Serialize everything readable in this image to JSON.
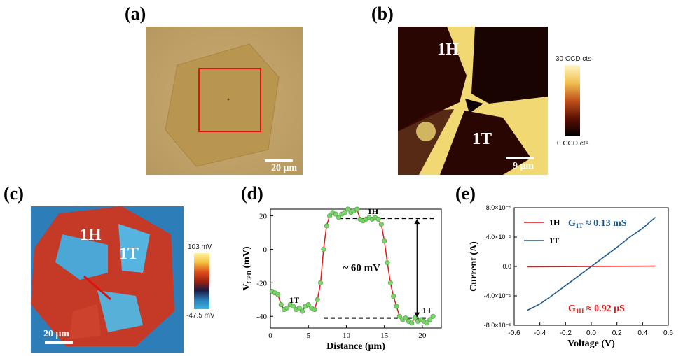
{
  "panels": {
    "a": {
      "label": "(a)",
      "scale_bar": "20 μm"
    },
    "b": {
      "label": "(b)",
      "region_1h": "1H",
      "region_1t": "1T",
      "scale_bar": "9 μm",
      "colorbar_max": "30 CCD cts",
      "colorbar_min": "0 CCD cts"
    },
    "c": {
      "label": "(c)",
      "region_1h": "1H",
      "region_1t": "1T",
      "scale_bar": "20 μm",
      "colorbar_max": "103 mV",
      "colorbar_min": "-47.5 mV"
    },
    "d": {
      "label": "(d)"
    },
    "e": {
      "label": "(e)"
    }
  },
  "colors": {
    "optical_bg": "#c3a46b",
    "flake": "#b99650",
    "marker_red": "#e01010",
    "line_red": "#e01818",
    "line_blue": "#1f5a91",
    "marker_green": "#7bd36a",
    "annot_red": "#e01818",
    "annot_blue": "#1f5a91"
  },
  "chart_data": [
    {
      "type": "line",
      "panel": "d",
      "xlabel": "Distance (μm)",
      "ylabel": "V_CPD (mV)",
      "xlim": [
        0,
        22.5
      ],
      "ylim": [
        -47,
        24
      ],
      "xticks": [
        0,
        5,
        10,
        15,
        20
      ],
      "yticks": [
        -40,
        -20,
        0,
        20
      ],
      "series": [
        {
          "x": [
            0.2,
            0.6,
            1.0,
            1.4,
            1.8,
            2.2,
            2.6,
            3.0,
            3.4,
            3.8,
            4.2,
            4.6,
            5.0,
            5.4,
            5.8,
            6.2,
            6.6,
            7.0,
            7.4,
            7.8,
            8.2,
            8.6,
            9.0,
            9.4,
            9.8,
            10.2,
            10.6,
            11.0,
            11.4,
            11.8,
            12.2,
            12.6,
            13.0,
            13.4,
            13.8,
            14.2,
            14.6,
            15.0,
            15.4,
            15.8,
            16.2,
            16.6,
            17.0,
            17.4,
            17.8,
            18.2,
            18.6,
            19.0,
            19.4,
            19.8,
            20.2,
            20.6,
            21.0,
            21.4
          ],
          "y": [
            -25,
            -26,
            -27,
            -33,
            -36,
            -35,
            -33,
            -34,
            -36,
            -35,
            -37,
            -34,
            -33,
            -35,
            -36,
            -30,
            -20,
            0,
            14,
            20,
            22,
            21,
            19,
            21,
            22,
            24,
            22,
            23,
            24,
            18,
            17,
            18,
            19,
            18,
            19,
            18,
            15,
            5,
            -8,
            -20,
            -28,
            -34,
            -40,
            -42,
            -41,
            -43,
            -44,
            -41,
            -43,
            -42,
            -43,
            -44,
            -42,
            -40
          ]
        }
      ],
      "annotations": [
        {
          "text": "1H",
          "x": 12.8,
          "y": 21
        },
        {
          "text": "1T",
          "x": 2.5,
          "y": -32
        },
        {
          "text": "1T",
          "x": 20.0,
          "y": -38
        },
        {
          "text": "~ 60 mV",
          "x": 12.0,
          "y": -13
        }
      ],
      "reference_levels": [
        18.5,
        -41
      ]
    },
    {
      "type": "line",
      "panel": "e",
      "xlabel": "Voltage (V)",
      "ylabel": "Current (A)",
      "xlim": [
        -0.6,
        0.6
      ],
      "ylim": [
        -8e-05,
        8e-05
      ],
      "xticks": [
        -0.6,
        -0.4,
        -0.2,
        0.0,
        0.2,
        0.4,
        0.6
      ],
      "xtick_labels": [
        "-0.6",
        "-0.4",
        "-0.2",
        "0.0",
        "0.2",
        "0.4",
        "0.6"
      ],
      "yticks": [
        -8e-05,
        -4e-05,
        0,
        4e-05,
        8e-05
      ],
      "ytick_labels": [
        "-8.0×10⁻⁵",
        "-4.0×10⁻⁵",
        "0.0",
        "4.0×10⁻⁵",
        "8.0×10⁻⁵"
      ],
      "series": [
        {
          "name": "1H",
          "x": [
            -0.5,
            0.5
          ],
          "y": [
            -4.6e-07,
            4.6e-07
          ]
        },
        {
          "name": "1T",
          "x": [
            -0.5,
            -0.4,
            -0.3,
            -0.2,
            -0.1,
            0.0,
            0.1,
            0.2,
            0.3,
            0.4,
            0.5
          ],
          "y": [
            -6e-05,
            -5.1e-05,
            -3.9e-05,
            -2.6e-05,
            -1.3e-05,
            0,
            1.3e-05,
            2.6e-05,
            4e-05,
            5.2e-05,
            6.7e-05
          ]
        }
      ],
      "annotations": [
        {
          "text": "G1T ≈ 0.13 mS"
        },
        {
          "text": "G1H ≈ 0.92 μS"
        }
      ]
    }
  ]
}
